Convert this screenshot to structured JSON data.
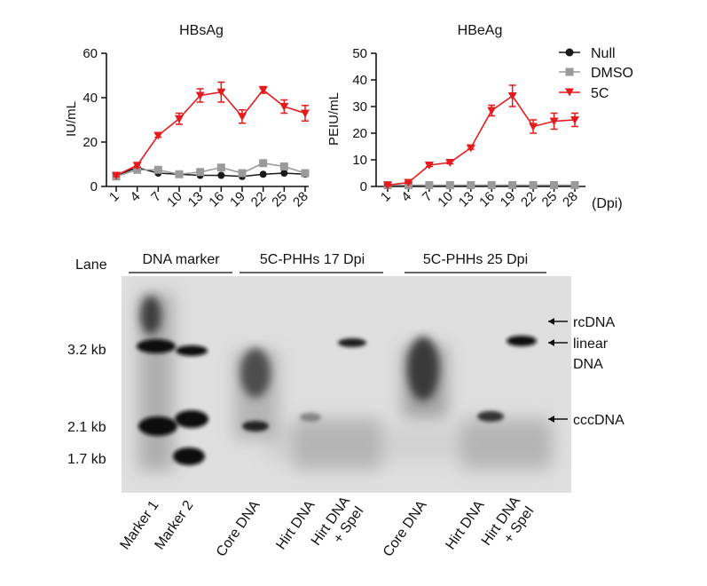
{
  "chart_data": [
    {
      "type": "line",
      "title": "HBsAg",
      "xlabel": "",
      "ylabel": "IU/mL",
      "ylim": [
        0,
        60
      ],
      "yticks": [
        0,
        20,
        40,
        60
      ],
      "x": [
        1,
        4,
        7,
        10,
        13,
        16,
        19,
        22,
        25,
        28
      ],
      "series": [
        {
          "name": "Null",
          "color": "#1a1a1a",
          "marker": "circle",
          "values": [
            5,
            8.5,
            6,
            5.5,
            5,
            5,
            4.5,
            5.5,
            6,
            5.5
          ]
        },
        {
          "name": "DMSO",
          "color": "#9a9a9a",
          "marker": "square",
          "values": [
            4.5,
            7.5,
            7.5,
            5.5,
            6.5,
            8.5,
            6,
            10.5,
            9,
            6
          ]
        },
        {
          "name": "5C",
          "color": "#e41a1c",
          "marker": "triangle-down",
          "values": [
            5,
            9.5,
            23,
            30.5,
            41,
            42.5,
            31.5,
            43.5,
            36,
            33
          ],
          "error": [
            0.5,
            1,
            0.8,
            2.5,
            3,
            4.5,
            3,
            1.5,
            3,
            3.5
          ]
        }
      ]
    },
    {
      "type": "line",
      "title": "HBeAg",
      "xlabel": "(Dpi)",
      "ylabel": "PEIU/mL",
      "ylim": [
        0,
        50
      ],
      "yticks": [
        0,
        10,
        20,
        30,
        40,
        50
      ],
      "x": [
        1,
        4,
        7,
        10,
        13,
        16,
        19,
        22,
        25,
        28
      ],
      "legend": "top-right",
      "series": [
        {
          "name": "Null",
          "color": "#1a1a1a",
          "marker": "circle",
          "values": [
            0.3,
            0.3,
            0.3,
            0.3,
            0.3,
            0.3,
            0.3,
            0.3,
            0.3,
            0.3
          ]
        },
        {
          "name": "DMSO",
          "color": "#9a9a9a",
          "marker": "square",
          "values": [
            0.5,
            0.5,
            0.5,
            0.5,
            0.5,
            0.5,
            0.5,
            0.5,
            0.5,
            0.5
          ]
        },
        {
          "name": "5C",
          "color": "#e41a1c",
          "marker": "triangle-down",
          "values": [
            0.5,
            1.5,
            8,
            9,
            14.5,
            28.5,
            34,
            22.5,
            24.5,
            25
          ],
          "error": [
            0.3,
            0.3,
            0.5,
            0.5,
            0.5,
            2,
            4,
            2.5,
            3,
            2.5
          ]
        }
      ]
    }
  ],
  "gel": {
    "lane_label": "Lane",
    "groups": [
      "DNA marker",
      "5C-PHHs 17 Dpi",
      "5C-PHHs 25 Dpi"
    ],
    "size_labels": [
      "3.2 kb",
      "2.1 kb",
      "1.7 kb"
    ],
    "band_labels": [
      "rcDNA",
      "linear\nDNA",
      "cccDNA"
    ],
    "lanes": [
      "Marker 1",
      "Marker 2",
      "Core DNA",
      "Hirt DNA",
      "Hirt DNA\n+ SpeI",
      "Core DNA",
      "Hirt DNA",
      "Hirt DNA\n+ SpeI"
    ]
  }
}
